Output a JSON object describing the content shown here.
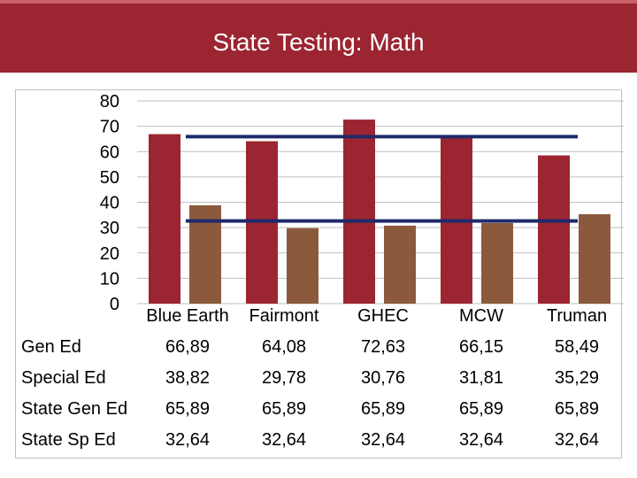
{
  "title": "State Testing: Math",
  "colors": {
    "title_bg": "#9b2530",
    "gen_ed": "#9b2530",
    "special_ed": "#8b5a3c",
    "state_lines": "#1f2a6b"
  },
  "chart_data": {
    "type": "bar",
    "title": "State Testing: Math",
    "categories": [
      "Blue Earth",
      "Fairmont",
      "GHEC",
      "MCW",
      "Truman"
    ],
    "series": [
      {
        "name": "Gen Ed",
        "kind": "bar",
        "values": [
          66.89,
          64.08,
          72.63,
          66.15,
          58.49
        ],
        "labels": [
          "66,89",
          "64,08",
          "72,63",
          "66,15",
          "58,49"
        ]
      },
      {
        "name": "Special Ed",
        "kind": "bar",
        "values": [
          38.82,
          29.78,
          30.76,
          31.81,
          35.29
        ],
        "labels": [
          "38,82",
          "29,78",
          "30,76",
          "31,81",
          "35,29"
        ]
      },
      {
        "name": "State Gen Ed",
        "kind": "line",
        "values": [
          65.89,
          65.89,
          65.89,
          65.89,
          65.89
        ],
        "labels": [
          "65,89",
          "65,89",
          "65,89",
          "65,89",
          "65,89"
        ]
      },
      {
        "name": "State Sp Ed",
        "kind": "line",
        "values": [
          32.64,
          32.64,
          32.64,
          32.64,
          32.64
        ],
        "labels": [
          "32,64",
          "32,64",
          "32,64",
          "32,64",
          "32,64"
        ]
      }
    ],
    "yticks": [
      0,
      10,
      20,
      30,
      40,
      50,
      60,
      70,
      80
    ],
    "ylim": [
      0,
      80
    ],
    "grid": true,
    "legend": "data-table below chart"
  }
}
